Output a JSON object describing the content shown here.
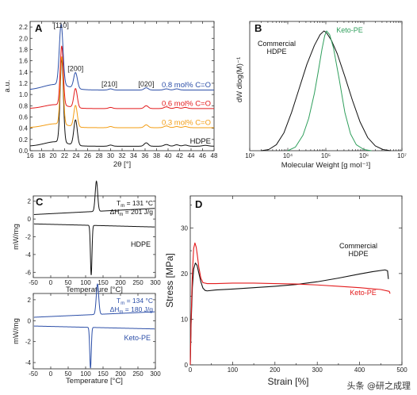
{
  "chart_data": [
    {
      "panel": "A",
      "type": "line",
      "xlabel": "2θ [°]",
      "ylabel": "a.u.",
      "xlim": [
        16,
        48
      ],
      "ylim": [
        0.0,
        2.3
      ],
      "xticks": [
        "16",
        "18",
        "20",
        "22",
        "24",
        "26",
        "28",
        "30",
        "32",
        "34",
        "36",
        "38",
        "40",
        "42",
        "44",
        "46",
        "48"
      ],
      "yticks": [
        "0.0",
        "0.2",
        "0.4",
        "0.6",
        "0.8",
        "1.0",
        "1.2",
        "1.4",
        "1.6",
        "1.8",
        "2.0",
        "2.2"
      ],
      "peak_labels": [
        {
          "text": "[110]",
          "x": 21.4,
          "y": 2.19
        },
        {
          "text": "[200]",
          "x": 23.9,
          "y": 1.42
        },
        {
          "text": "[210]",
          "x": 29.8,
          "y": 1.14
        },
        {
          "text": "[020]",
          "x": 36.2,
          "y": 1.14
        }
      ],
      "series": [
        {
          "name": "HDPE",
          "color": "#111111",
          "baseline": 0.08,
          "peaks": [
            [
              21.5,
              1.48,
              0.28
            ],
            [
              23.9,
              0.45,
              0.3
            ],
            [
              30.0,
              0.02,
              0.35
            ],
            [
              36.2,
              0.06,
              0.35
            ],
            [
              39.7,
              0.03,
              0.4
            ],
            [
              41.5,
              0.025,
              0.4
            ],
            [
              43.0,
              0.02,
              0.4
            ],
            [
              46.5,
              0.015,
              0.5
            ]
          ],
          "halo": [
            20.5,
            0.08,
            2.0
          ]
        },
        {
          "name": "0.3 mol% C=O",
          "color": "#f39c12",
          "baseline": 0.41,
          "peaks": [
            [
              21.5,
              1.2,
              0.27
            ],
            [
              23.9,
              0.38,
              0.3
            ],
            [
              30.0,
              0.02,
              0.35
            ],
            [
              36.2,
              0.05,
              0.35
            ],
            [
              39.7,
              0.03,
              0.4
            ],
            [
              41.5,
              0.02,
              0.4
            ],
            [
              43.0,
              0.02,
              0.4
            ]
          ],
          "halo": [
            20.5,
            0.07,
            2.0
          ]
        },
        {
          "name": "0.6 mol% C=O",
          "color": "#e31a1c",
          "baseline": 0.75,
          "peaks": [
            [
              21.5,
              1.05,
              0.27
            ],
            [
              23.9,
              0.34,
              0.3
            ],
            [
              30.0,
              0.02,
              0.35
            ],
            [
              36.2,
              0.05,
              0.35
            ],
            [
              39.7,
              0.03,
              0.4
            ],
            [
              41.5,
              0.02,
              0.4
            ],
            [
              43.0,
              0.02,
              0.4
            ]
          ],
          "halo": [
            20.5,
            0.07,
            2.0
          ]
        },
        {
          "name": "0.8 mol% C=O",
          "color": "#2c4fa8",
          "baseline": 1.08,
          "peaks": [
            [
              21.4,
              1.08,
              0.32
            ],
            [
              23.9,
              0.28,
              0.32
            ],
            [
              30.0,
              0.02,
              0.35
            ],
            [
              36.2,
              0.04,
              0.35
            ],
            [
              39.7,
              0.02,
              0.4
            ],
            [
              41.5,
              0.02,
              0.4
            ]
          ],
          "halo": [
            20.5,
            0.1,
            2.2
          ]
        }
      ]
    },
    {
      "panel": "B",
      "type": "line",
      "xlabel": "Molecular Weight [g mol⁻¹]",
      "ylabel": "dW dlog(M)⁻¹",
      "xscale": "log",
      "xlim": [
        1000,
        10000000
      ],
      "xticks": [
        "10³",
        "10⁴",
        "10⁵",
        "10⁶",
        "10⁷"
      ],
      "series": [
        {
          "name": "Commercial HDPE",
          "label_lines": [
            "Commercial",
            "HDPE"
          ],
          "color": "#111111",
          "logM": [
            3.3,
            3.5,
            3.7,
            3.9,
            4.1,
            4.3,
            4.5,
            4.7,
            4.85,
            4.95,
            5.0,
            5.05,
            5.15,
            5.3,
            5.5,
            5.7,
            5.9,
            6.1,
            6.3,
            6.5,
            6.7
          ],
          "w": [
            0.0,
            0.01,
            0.05,
            0.15,
            0.32,
            0.52,
            0.72,
            0.88,
            0.97,
            1.0,
            0.99,
            0.97,
            0.92,
            0.81,
            0.62,
            0.42,
            0.24,
            0.11,
            0.04,
            0.01,
            0.0
          ]
        },
        {
          "name": "Keto-PE",
          "label_lines": [
            "Keto-PE"
          ],
          "color": "#2e9e5b",
          "logM": [
            4.0,
            4.2,
            4.4,
            4.55,
            4.7,
            4.8,
            4.9,
            4.97,
            5.02,
            5.1,
            5.2,
            5.35,
            5.5,
            5.65,
            5.8,
            6.0,
            6.2
          ],
          "w": [
            0.0,
            0.03,
            0.13,
            0.27,
            0.48,
            0.66,
            0.85,
            0.96,
            1.0,
            0.97,
            0.86,
            0.6,
            0.32,
            0.14,
            0.05,
            0.01,
            0.0
          ]
        }
      ]
    },
    {
      "panel": "C",
      "type": "line",
      "xlabel": "Temperature [°C]",
      "ylabel": "mW/mg",
      "xlim": [
        -50,
        300
      ],
      "xticks": [
        "-50",
        "0",
        "50",
        "100",
        "150",
        "200",
        "250",
        "300"
      ],
      "subplots": [
        {
          "name": "HDPE",
          "color": "#111111",
          "ylim": [
            -6.6,
            2.6
          ],
          "yticks": [
            "2",
            "0",
            "-2",
            "-4",
            "-6"
          ],
          "annotation": {
            "tm": "131 °C",
            "dhm": "201 J/g"
          },
          "heating": {
            "base": 0.6,
            "slope": 0.002,
            "peak": [
              131,
              3.4,
              3.5
            ]
          },
          "cooling": {
            "base": -0.6,
            "slope": -0.001,
            "peak": [
              116,
              -5.6,
              2.2
            ]
          }
        },
        {
          "name": "Keto-PE",
          "color": "#2c4fa8",
          "ylim": [
            -4.6,
            2.6
          ],
          "yticks": [
            "2",
            "0",
            "-2",
            "-4"
          ],
          "annotation": {
            "tm": "134 °C",
            "dhm": "180 J/g"
          },
          "heating": {
            "base": 0.4,
            "slope": 0.0015,
            "peak": [
              134,
              2.9,
              3.5
            ]
          },
          "cooling": {
            "base": -0.55,
            "slope": -0.0008,
            "peak": [
              114,
              -3.9,
              2.2
            ]
          }
        }
      ]
    },
    {
      "panel": "D",
      "type": "line",
      "xlabel": "Strain [%]",
      "ylabel": "Stress [MPa]",
      "xlim": [
        0,
        500
      ],
      "ylim": [
        0,
        37
      ],
      "xticks": [
        "0",
        "100",
        "200",
        "300",
        "400",
        "500"
      ],
      "yticks": [
        "0",
        "10",
        "20",
        "30"
      ],
      "series": [
        {
          "name": "Commercial HDPE",
          "label_lines": [
            "Commercial",
            "HDPE"
          ],
          "color": "#111111",
          "strain": [
            0,
            2,
            5,
            8,
            12,
            16,
            20,
            25,
            30,
            35,
            40,
            60,
            100,
            150,
            200,
            250,
            300,
            350,
            400,
            430,
            460,
            466,
            468
          ],
          "stress": [
            0,
            9,
            17,
            21,
            22.3,
            21.8,
            20.2,
            18.2,
            16.8,
            16.3,
            16.2,
            16.4,
            16.6,
            16.9,
            17.2,
            17.6,
            18.2,
            19.0,
            19.9,
            20.4,
            20.8,
            20.6,
            18.8
          ]
        },
        {
          "name": "Keto-PE",
          "label_lines": [
            "Keto-PE"
          ],
          "color": "#e31a1c",
          "strain": [
            0,
            2,
            5,
            8,
            11,
            14,
            17,
            20,
            25,
            30,
            40,
            60,
            100,
            150,
            200,
            250,
            300,
            350,
            400,
            450,
            470,
            472
          ],
          "stress": [
            0,
            10,
            20,
            25.5,
            26.7,
            25.8,
            23.8,
            21.5,
            19.0,
            18.0,
            17.8,
            17.8,
            17.9,
            17.9,
            17.8,
            17.7,
            17.5,
            17.2,
            16.9,
            16.5,
            16.1,
            15.6
          ]
        }
      ]
    }
  ],
  "watermark": "头条 @研之成理"
}
